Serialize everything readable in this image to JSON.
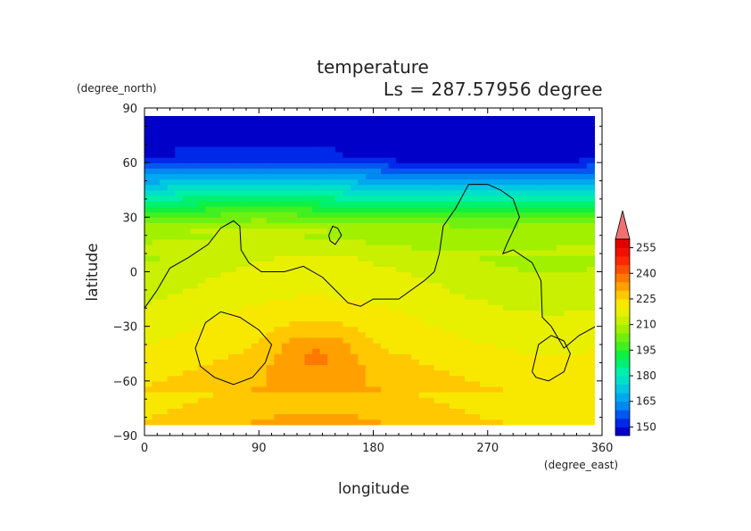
{
  "chart_data": {
    "type": "heatmap",
    "title": "temperature",
    "subtitle": "Ls = 287.57956 degree",
    "xlabel": "longitude",
    "ylabel": "latitude",
    "xunit": "(degree_east)",
    "yunit": "(degree_north)",
    "xlim": [
      0,
      360
    ],
    "ylim": [
      -90,
      90
    ],
    "xticks": [
      0,
      90,
      180,
      270,
      360
    ],
    "yticks": [
      90,
      60,
      30,
      0,
      -30,
      -60,
      -90
    ],
    "colorbar": {
      "labels": [
        150,
        165,
        180,
        195,
        210,
        225,
        240,
        255
      ],
      "levels": [
        145,
        150,
        155,
        160,
        165,
        170,
        175,
        180,
        185,
        190,
        195,
        200,
        205,
        210,
        215,
        220,
        225,
        230,
        235,
        240,
        245,
        250,
        255,
        260
      ],
      "colors": [
        "#0000c8",
        "#0028e8",
        "#0058f0",
        "#0088f0",
        "#00a8f0",
        "#00c8e0",
        "#00e0c8",
        "#00f0a8",
        "#00f070",
        "#10f040",
        "#40f020",
        "#70f010",
        "#a0f000",
        "#c8f000",
        "#e8f000",
        "#f8e800",
        "#ffc800",
        "#ffa000",
        "#ff7800",
        "#ff5000",
        "#ff2800",
        "#f01000",
        "#e00000"
      ]
    },
    "contours": [
      {
        "points": [
          [
            0,
            -20
          ],
          [
            10,
            -10
          ],
          [
            20,
            2
          ],
          [
            35,
            8
          ],
          [
            50,
            15
          ],
          [
            60,
            24
          ],
          [
            70,
            28
          ],
          [
            75,
            25
          ],
          [
            76,
            12
          ],
          [
            82,
            5
          ],
          [
            92,
            0
          ],
          [
            110,
            0
          ],
          [
            125,
            3
          ],
          [
            140,
            -3
          ],
          [
            150,
            -10
          ],
          [
            160,
            -17
          ],
          [
            170,
            -19
          ],
          [
            180,
            -15
          ],
          [
            190,
            -15
          ],
          [
            200,
            -15
          ],
          [
            210,
            -10
          ],
          [
            220,
            -5
          ],
          [
            228,
            0
          ],
          [
            232,
            10
          ],
          [
            235,
            25
          ],
          [
            245,
            35
          ],
          [
            255,
            48
          ],
          [
            270,
            48
          ],
          [
            280,
            45
          ],
          [
            290,
            40
          ],
          [
            295,
            30
          ],
          [
            285,
            15
          ],
          [
            282,
            10
          ],
          [
            290,
            12
          ],
          [
            305,
            5
          ],
          [
            312,
            -5
          ],
          [
            313,
            -25
          ],
          [
            320,
            -30
          ],
          [
            330,
            -42
          ],
          [
            342,
            -35
          ],
          [
            355,
            -30
          ],
          [
            360,
            -22
          ]
        ]
      },
      {
        "points": [
          [
            145,
            20
          ],
          [
            148,
            25
          ],
          [
            152,
            24
          ],
          [
            155,
            20
          ],
          [
            150,
            15
          ],
          [
            146,
            17
          ],
          [
            145,
            20
          ]
        ]
      },
      {
        "points": [
          [
            40,
            -42
          ],
          [
            48,
            -28
          ],
          [
            60,
            -22
          ],
          [
            75,
            -25
          ],
          [
            90,
            -32
          ],
          [
            100,
            -40
          ],
          [
            95,
            -50
          ],
          [
            85,
            -58
          ],
          [
            70,
            -62
          ],
          [
            55,
            -58
          ],
          [
            44,
            -52
          ],
          [
            40,
            -42
          ]
        ]
      },
      {
        "points": [
          [
            305,
            -55
          ],
          [
            310,
            -40
          ],
          [
            320,
            -35
          ],
          [
            330,
            -38
          ],
          [
            335,
            -45
          ],
          [
            330,
            -55
          ],
          [
            318,
            -60
          ],
          [
            308,
            -58
          ],
          [
            305,
            -55
          ]
        ]
      }
    ]
  }
}
